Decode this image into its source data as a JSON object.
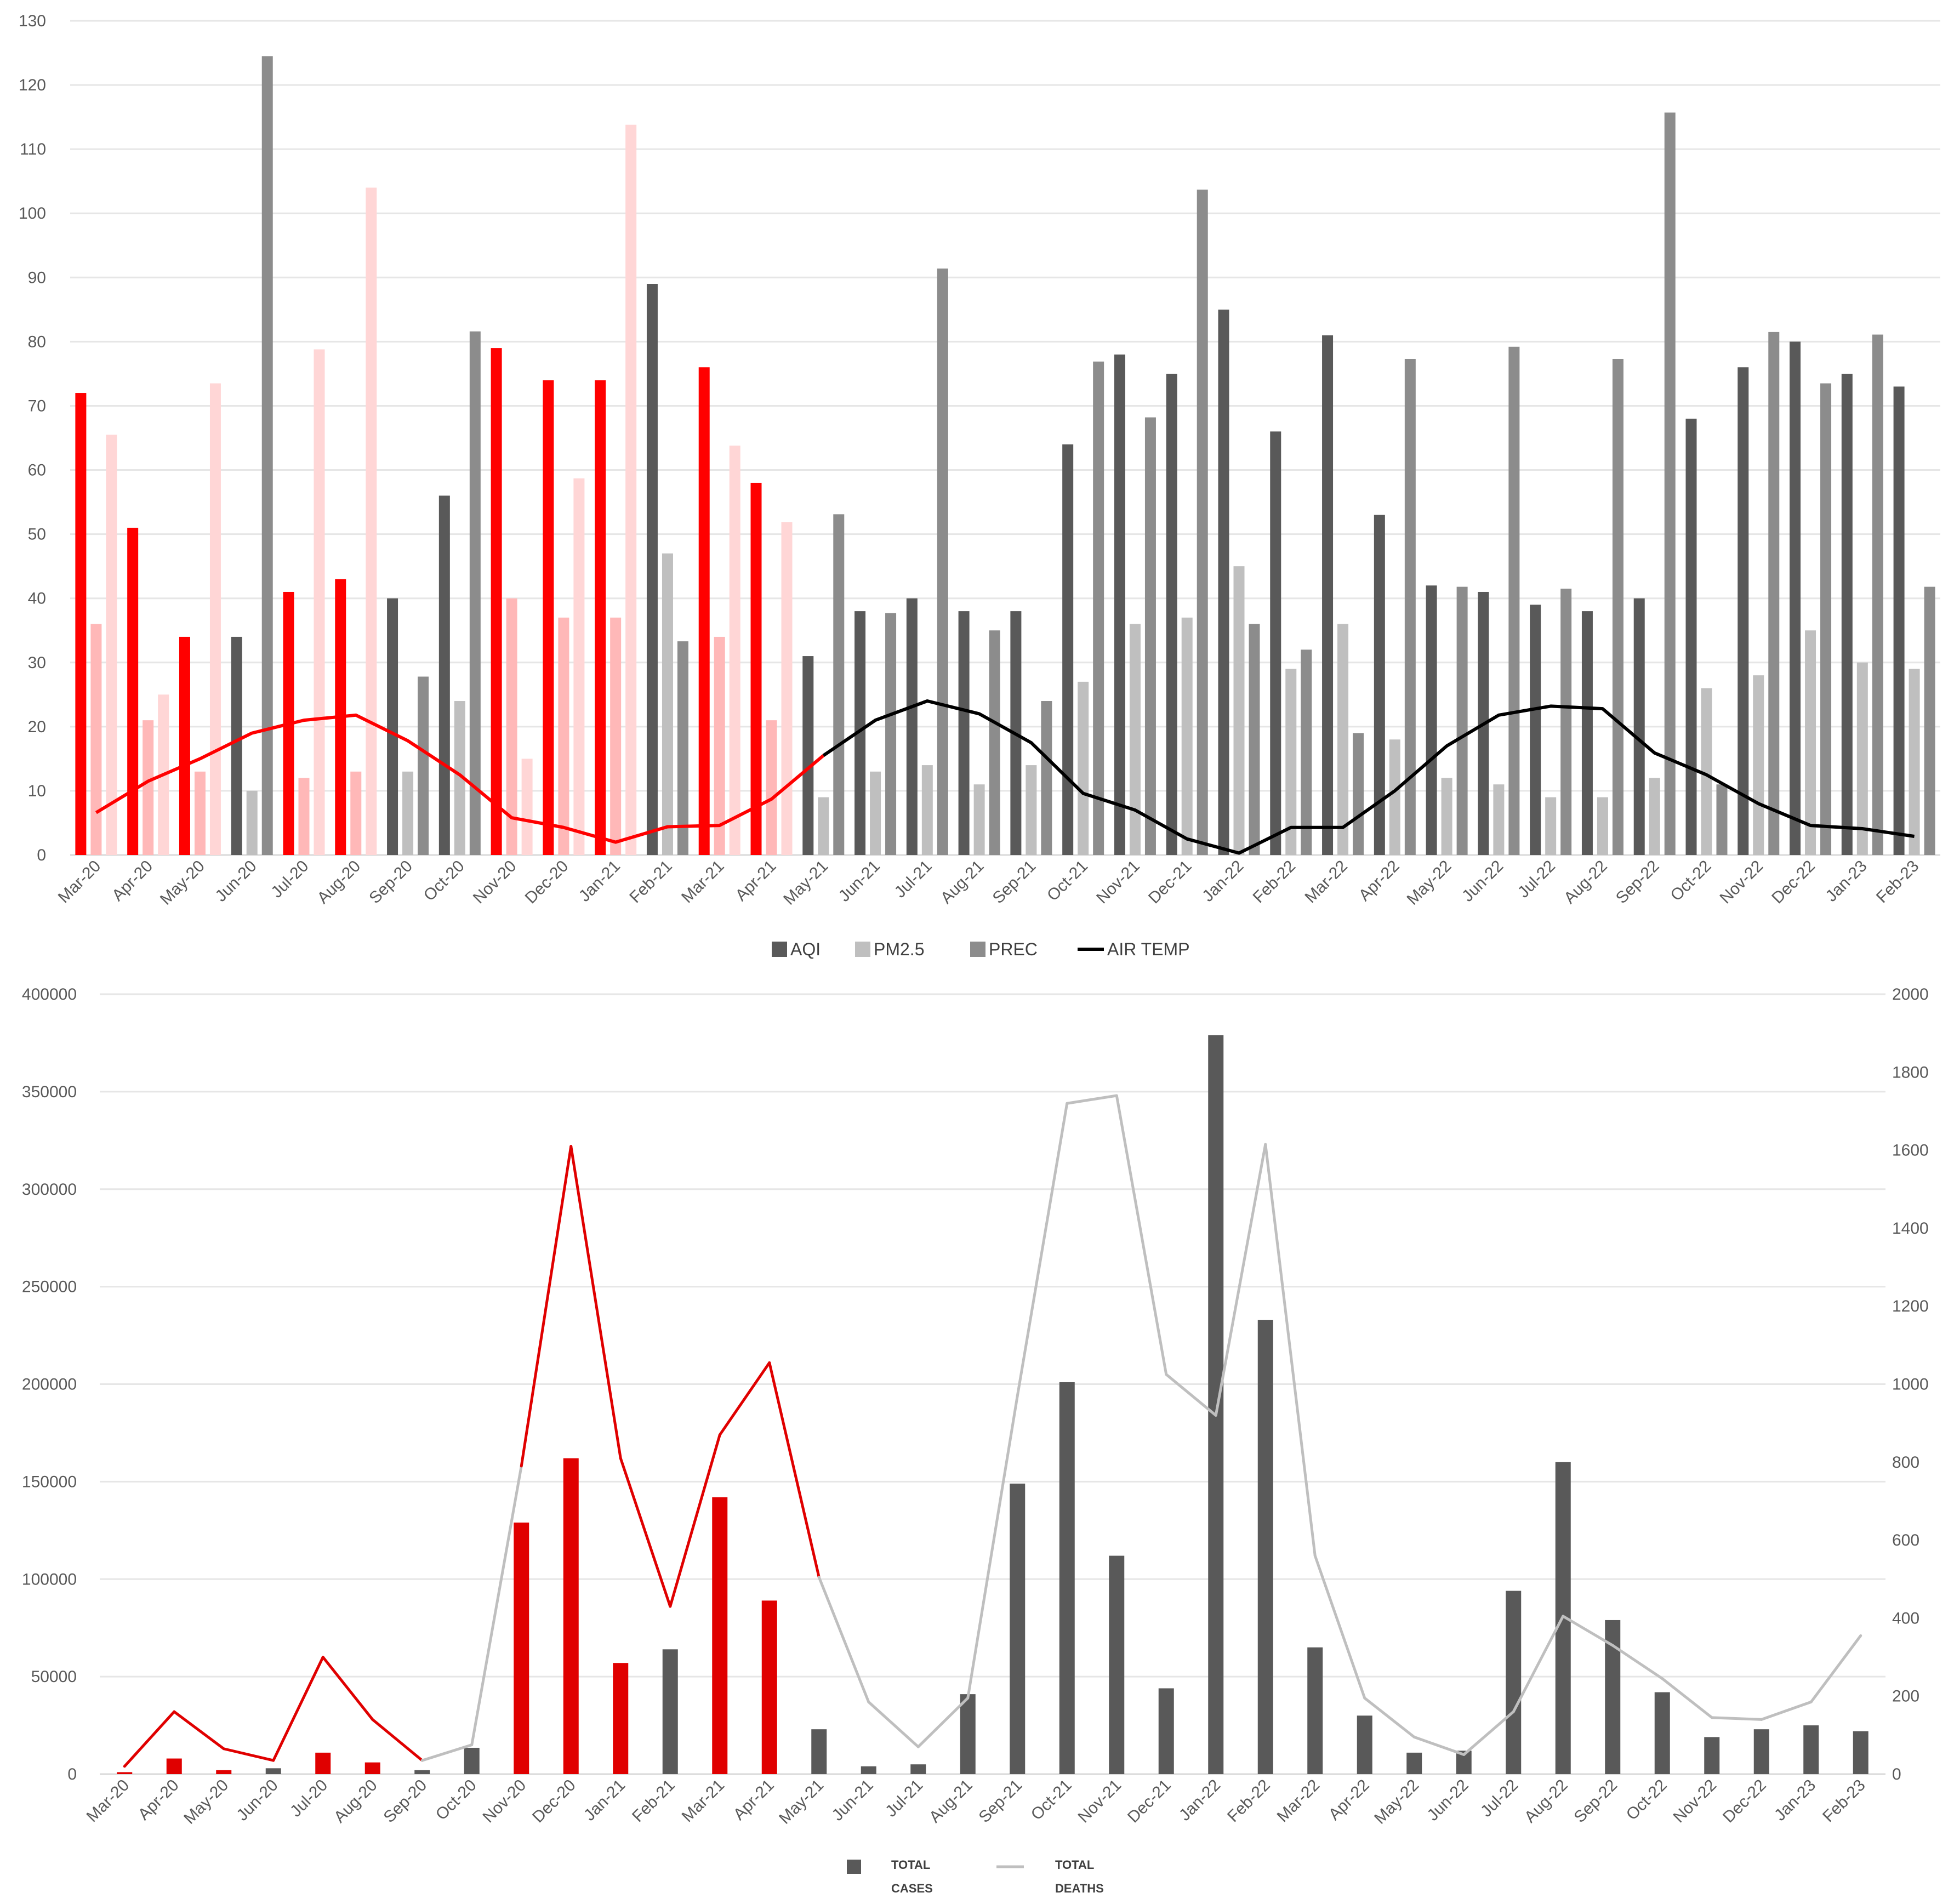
{
  "chart_data": [
    {
      "type": "bar",
      "categories": [
        "Mar-20",
        "Apr-20",
        "May-20",
        "Jun-20",
        "Jul-20",
        "Aug-20",
        "Sep-20",
        "Oct-20",
        "Nov-20",
        "Dec-20",
        "Jan-21",
        "Feb-21",
        "Mar-21",
        "Apr-21",
        "May-21",
        "Jun-21",
        "Jul-21",
        "Aug-21",
        "Sep-21",
        "Oct-21",
        "Nov-21",
        "Dec-21",
        "Jan-22",
        "Feb-22",
        "Mar-22",
        "Apr-22",
        "May-22",
        "Jun-22",
        "Jul-22",
        "Aug-22",
        "Sep-22",
        "Oct-22",
        "Nov-22",
        "Dec-22",
        "Jan-23",
        "Feb-23"
      ],
      "highlight_indices": [
        0,
        1,
        2,
        4,
        5,
        8,
        9,
        10,
        12,
        13
      ],
      "highlight_color": "#ff0000",
      "ylim": [
        0,
        130
      ],
      "yticks": [
        0,
        10,
        20,
        30,
        40,
        50,
        60,
        70,
        80,
        90,
        100,
        110,
        120,
        130
      ],
      "grid": true,
      "legend_position": "bottom",
      "series": [
        {
          "name": "AQI",
          "kind": "bar",
          "color": "#595959",
          "values": [
            72,
            51,
            34,
            34,
            41,
            43,
            40,
            56,
            79,
            74,
            74,
            89,
            76,
            58,
            31,
            38,
            40,
            38,
            38,
            64,
            78,
            75,
            85,
            66,
            81,
            53,
            42,
            41,
            39,
            38,
            40,
            68,
            76,
            80,
            75,
            73
          ]
        },
        {
          "name": "PM2.5",
          "kind": "bar",
          "color": "#bfbfbf",
          "values": [
            36,
            21,
            13,
            10,
            12,
            13,
            13,
            24,
            40,
            37,
            37,
            47,
            34,
            21,
            9,
            13,
            14,
            11,
            14,
            27,
            36,
            37,
            45,
            29,
            36,
            18,
            12,
            11,
            9,
            9,
            12,
            26,
            28,
            35,
            30,
            29
          ]
        },
        {
          "name": "PREC",
          "kind": "bar",
          "color": "#8c8c8c",
          "values": [
            65.5,
            25,
            73.5,
            124.5,
            78.8,
            104,
            27.8,
            81.6,
            15,
            58.7,
            113.8,
            33.3,
            63.8,
            51.9,
            53.1,
            37.7,
            91.4,
            35,
            24,
            76.9,
            68.2,
            103.7,
            36,
            32,
            19,
            77.3,
            41.8,
            79.2,
            41.5,
            77.3,
            115.7,
            11,
            81.5,
            73.5,
            81.1,
            41.8
          ]
        },
        {
          "name": "AIR TEMP",
          "kind": "line",
          "color": "#000000",
          "values": [
            6.6,
            11.5,
            15,
            19,
            21,
            21.8,
            17.8,
            12.5,
            5.8,
            4.3,
            2,
            4.4,
            4.6,
            8.7,
            15.5,
            21,
            24,
            22,
            17.5,
            9.6,
            7,
            2.5,
            0.3,
            4.3,
            4.3,
            10,
            17,
            21.8,
            23.2,
            22.8,
            15.9,
            12.5,
            8,
            4.6,
            4.1,
            2.9
          ]
        }
      ]
    },
    {
      "type": "bar",
      "categories": [
        "Mar-20",
        "Apr-20",
        "May-20",
        "Jun-20",
        "Jul-20",
        "Aug-20",
        "Sep-20",
        "Oct-20",
        "Nov-20",
        "Dec-20",
        "Jan-21",
        "Feb-21",
        "Mar-21",
        "Apr-21",
        "May-21",
        "Jun-21",
        "Jul-21",
        "Aug-21",
        "Sep-21",
        "Oct-21",
        "Nov-21",
        "Dec-21",
        "Jan-22",
        "Feb-22",
        "Mar-22",
        "Apr-22",
        "May-22",
        "Jun-22",
        "Jul-22",
        "Aug-22",
        "Sep-22",
        "Oct-22",
        "Nov-22",
        "Dec-22",
        "Jan-23",
        "Feb-23"
      ],
      "highlight_indices": [
        0,
        1,
        2,
        4,
        5,
        8,
        9,
        10,
        12,
        13
      ],
      "highlight_color": "#e00000",
      "ylim": [
        0,
        400000
      ],
      "yticks": [
        0,
        50000,
        100000,
        150000,
        200000,
        250000,
        300000,
        350000,
        400000
      ],
      "y2lim": [
        0,
        2000
      ],
      "y2ticks": [
        0,
        200,
        400,
        600,
        800,
        1000,
        1200,
        1400,
        1600,
        1800,
        2000
      ],
      "grid": true,
      "legend_position": "bottom",
      "series": [
        {
          "name": "TOTAL CASES",
          "legend_lines": [
            "TOTAL",
            "CASES"
          ],
          "kind": "bar",
          "axis": "left",
          "color": "#595959",
          "values": [
            1000,
            8000,
            2000,
            3000,
            11000,
            6000,
            2000,
            13500,
            129000,
            162000,
            57000,
            64000,
            142000,
            89000,
            23000,
            4000,
            5000,
            41000,
            149000,
            201000,
            112000,
            44000,
            379000,
            233000,
            65000,
            30000,
            11000,
            12000,
            94000,
            160000,
            79000,
            42000,
            19000,
            23000,
            25000,
            22000
          ]
        },
        {
          "name": "TOTAL DEATHS",
          "legend_lines": [
            "TOTAL",
            "DEATHS"
          ],
          "kind": "line",
          "axis": "right",
          "color": "#bfbfbf",
          "values": [
            20,
            160,
            65,
            35,
            300,
            140,
            35,
            75,
            790,
            1610,
            810,
            430,
            870,
            1055,
            505,
            185,
            70,
            195,
            970,
            1720,
            1740,
            1025,
            920,
            1615,
            560,
            195,
            95,
            50,
            160,
            405,
            330,
            245,
            145,
            140,
            185,
            355
          ]
        }
      ]
    }
  ]
}
